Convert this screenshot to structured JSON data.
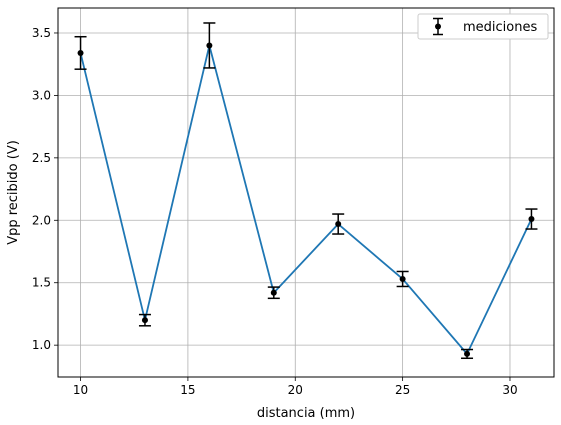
{
  "chart_data": {
    "type": "line",
    "title": "",
    "xlabel": "distancia (mm)",
    "ylabel": "Vpp recibido (V)",
    "xlim": [
      8.95,
      32.05
    ],
    "ylim": [
      0.745,
      3.7
    ],
    "xticks": [
      10,
      15,
      20,
      25,
      30
    ],
    "xtick_labels": [
      "10",
      "15",
      "20",
      "25",
      "30"
    ],
    "yticks": [
      1.0,
      1.5,
      2.0,
      2.5,
      3.0,
      3.5
    ],
    "ytick_labels": [
      "1.0",
      "1.5",
      "2.0",
      "2.5",
      "3.0",
      "3.5"
    ],
    "grid": true,
    "legend_position": "top-right",
    "line_color": "#1f77b4",
    "marker_color": "#000000",
    "series": [
      {
        "name": "mediciones",
        "x": [
          10,
          13,
          16,
          19,
          22,
          25,
          28,
          31
        ],
        "y": [
          3.34,
          1.2,
          3.4,
          1.42,
          1.97,
          1.53,
          0.93,
          2.01
        ],
        "yerr": [
          0.13,
          0.045,
          0.18,
          0.045,
          0.08,
          0.06,
          0.035,
          0.08
        ]
      }
    ]
  }
}
